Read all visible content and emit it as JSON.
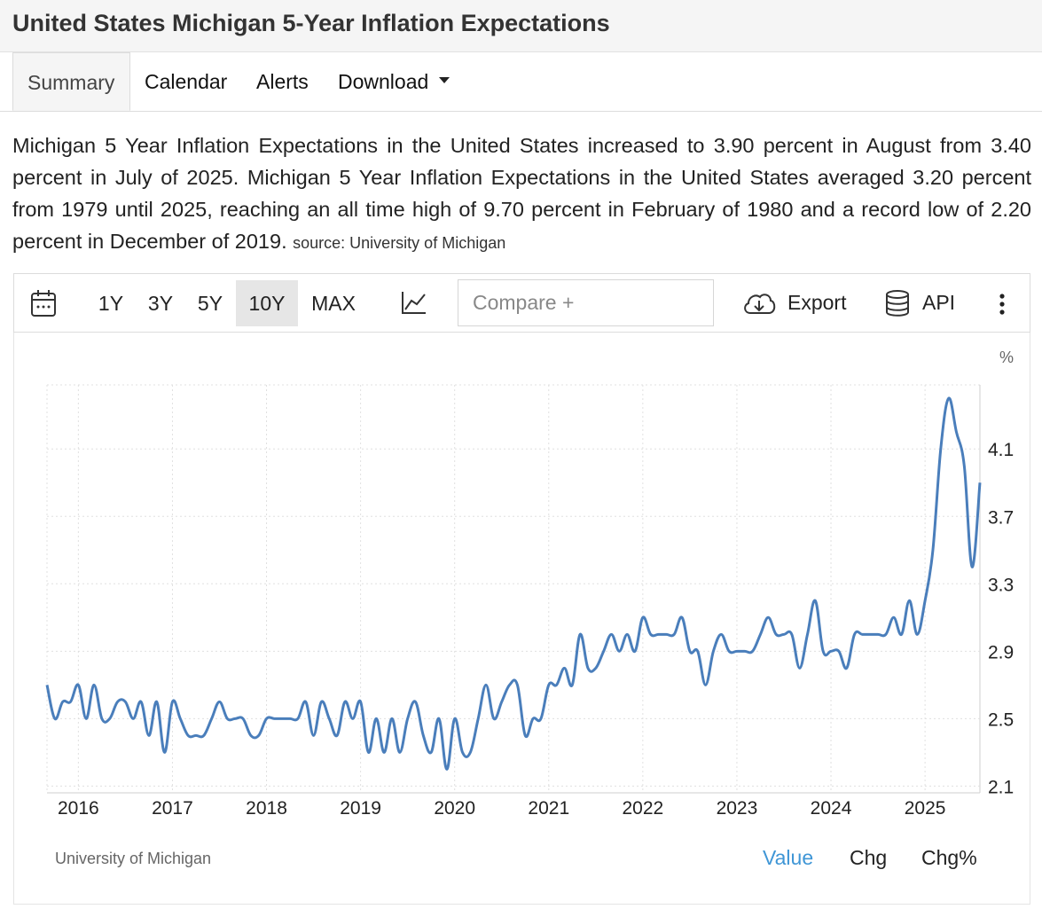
{
  "page": {
    "title": "United States Michigan 5-Year Inflation Expectations",
    "tabs": [
      {
        "label": "Summary"
      },
      {
        "label": "Calendar"
      },
      {
        "label": "Alerts"
      },
      {
        "label": "Download"
      }
    ],
    "description": "Michigan 5 Year Inflation Expectations in the United States increased to 3.90 percent in August from 3.40 percent in July of 2025. Michigan 5 Year Inflation Expectations in the United States averaged 3.20 percent from 1979 until 2025, reaching an all time high of 9.70 percent in February of 1980 and a record low of 2.20 percent in December of 2019.",
    "source_label": "source: University of Michigan"
  },
  "toolbar": {
    "ranges": [
      "1Y",
      "3Y",
      "5Y",
      "10Y",
      "MAX"
    ],
    "selected_range": "10Y",
    "compare_placeholder": "Compare +",
    "export_label": "Export",
    "api_label": "API",
    "icons": [
      "calendar-icon",
      "line-chart-icon",
      "cloud-download-icon",
      "database-icon",
      "more-vertical-icon"
    ]
  },
  "footer": {
    "source": "University of Michigan",
    "tabs": [
      "Value",
      "Chg",
      "Chg%"
    ],
    "active_tab": "Value"
  },
  "colors": {
    "line": "#4a7ebb",
    "active_tab": "#3f96d6",
    "grid": "#e0e0e0"
  },
  "chart_data": {
    "type": "line",
    "unit": "%",
    "x_ticks": [
      "2016",
      "2017",
      "2018",
      "2019",
      "2020",
      "2021",
      "2022",
      "2023",
      "2024",
      "2025"
    ],
    "y_ticks": [
      2.1,
      2.5,
      2.9,
      3.3,
      3.7,
      4.1
    ],
    "ylim": [
      2.06,
      4.48
    ],
    "xlim": [
      "2015-09",
      "2025-08"
    ],
    "grid": true,
    "series": [
      {
        "x": [
          "2015-09",
          "2015-10",
          "2015-11",
          "2015-12",
          "2016-01",
          "2016-02",
          "2016-03",
          "2016-04",
          "2016-05",
          "2016-06",
          "2016-07",
          "2016-08",
          "2016-09",
          "2016-10",
          "2016-11",
          "2016-12",
          "2017-01",
          "2017-02",
          "2017-03",
          "2017-04",
          "2017-05",
          "2017-06",
          "2017-07",
          "2017-08",
          "2017-09",
          "2017-10",
          "2017-11",
          "2017-12",
          "2018-01",
          "2018-02",
          "2018-03",
          "2018-04",
          "2018-05",
          "2018-06",
          "2018-07",
          "2018-08",
          "2018-09",
          "2018-10",
          "2018-11",
          "2018-12",
          "2019-01",
          "2019-02",
          "2019-03",
          "2019-04",
          "2019-05",
          "2019-06",
          "2019-07",
          "2019-08",
          "2019-09",
          "2019-10",
          "2019-11",
          "2019-12",
          "2020-01",
          "2020-02",
          "2020-03",
          "2020-04",
          "2020-05",
          "2020-06",
          "2020-07",
          "2020-08",
          "2020-09",
          "2020-10",
          "2020-11",
          "2020-12",
          "2021-01",
          "2021-02",
          "2021-03",
          "2021-04",
          "2021-05",
          "2021-06",
          "2021-07",
          "2021-08",
          "2021-09",
          "2021-10",
          "2021-11",
          "2021-12",
          "2022-01",
          "2022-02",
          "2022-03",
          "2022-04",
          "2022-05",
          "2022-06",
          "2022-07",
          "2022-08",
          "2022-09",
          "2022-10",
          "2022-11",
          "2022-12",
          "2023-01",
          "2023-02",
          "2023-03",
          "2023-04",
          "2023-05",
          "2023-06",
          "2023-07",
          "2023-08",
          "2023-09",
          "2023-10",
          "2023-11",
          "2023-12",
          "2024-01",
          "2024-02",
          "2024-03",
          "2024-04",
          "2024-05",
          "2024-06",
          "2024-07",
          "2024-08",
          "2024-09",
          "2024-10",
          "2024-11",
          "2024-12",
          "2025-01",
          "2025-02",
          "2025-03",
          "2025-04",
          "2025-05",
          "2025-06",
          "2025-07",
          "2025-08"
        ],
        "values": [
          2.7,
          2.5,
          2.6,
          2.6,
          2.7,
          2.5,
          2.7,
          2.5,
          2.5,
          2.6,
          2.6,
          2.5,
          2.6,
          2.4,
          2.6,
          2.3,
          2.6,
          2.5,
          2.4,
          2.4,
          2.4,
          2.5,
          2.6,
          2.5,
          2.5,
          2.5,
          2.4,
          2.4,
          2.5,
          2.5,
          2.5,
          2.5,
          2.5,
          2.6,
          2.4,
          2.6,
          2.5,
          2.4,
          2.6,
          2.5,
          2.6,
          2.3,
          2.5,
          2.3,
          2.5,
          2.3,
          2.5,
          2.6,
          2.4,
          2.3,
          2.5,
          2.2,
          2.5,
          2.3,
          2.3,
          2.5,
          2.7,
          2.5,
          2.6,
          2.7,
          2.7,
          2.4,
          2.5,
          2.5,
          2.7,
          2.7,
          2.8,
          2.7,
          3.0,
          2.8,
          2.8,
          2.9,
          3.0,
          2.9,
          3.0,
          2.9,
          3.1,
          3.0,
          3.0,
          3.0,
          3.0,
          3.1,
          2.9,
          2.9,
          2.7,
          2.9,
          3.0,
          2.9,
          2.9,
          2.9,
          2.9,
          3.0,
          3.1,
          3.0,
          3.0,
          3.0,
          2.8,
          3.0,
          3.2,
          2.9,
          2.9,
          2.9,
          2.8,
          3.0,
          3.0,
          3.0,
          3.0,
          3.0,
          3.1,
          3.0,
          3.2,
          3.0,
          3.2,
          3.5,
          4.1,
          4.4,
          4.2,
          4.0,
          3.4,
          3.9
        ]
      }
    ]
  }
}
